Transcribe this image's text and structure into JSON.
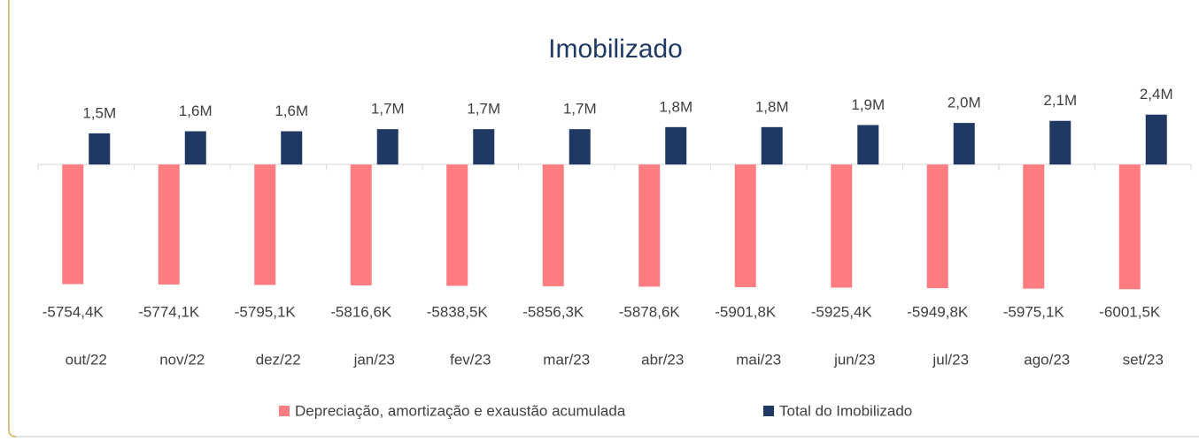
{
  "chart_data": {
    "type": "bar",
    "title": "Imobilizado",
    "categories": [
      "out/22",
      "nov/22",
      "dez/22",
      "jan/23",
      "fev/23",
      "mar/23",
      "abr/23",
      "mai/23",
      "jun/23",
      "jul/23",
      "ago/23",
      "set/23"
    ],
    "series": [
      {
        "name": "Depreciação, amortização e exaustão acumulada",
        "color": "#ff7c80",
        "values": [
          -5754400,
          -5774100,
          -5795100,
          -5816600,
          -5838500,
          -5856300,
          -5878600,
          -5901800,
          -5925400,
          -5949800,
          -5975100,
          -6001500
        ],
        "value_labels": [
          "-5754,4K",
          "-5774,1K",
          "-5795,1K",
          "-5816,6K",
          "-5838,5K",
          "-5856,3K",
          "-5878,6K",
          "-5901,8K",
          "-5925,4K",
          "-5949,8K",
          "-5975,1K",
          "-6001,5K"
        ]
      },
      {
        "name": "Total do Imobilizado",
        "color": "#1f3864",
        "values": [
          1500000,
          1600000,
          1600000,
          1700000,
          1700000,
          1700000,
          1800000,
          1800000,
          1900000,
          2000000,
          2100000,
          2400000
        ],
        "value_labels": [
          "1,5M",
          "1,6M",
          "1,6M",
          "1,7M",
          "1,7M",
          "1,7M",
          "1,8M",
          "1,8M",
          "1,9M",
          "2,0M",
          "2,1M",
          "2,4M"
        ]
      }
    ],
    "ylim": [
      -6500000,
      2600000
    ],
    "legend": "bottom"
  }
}
